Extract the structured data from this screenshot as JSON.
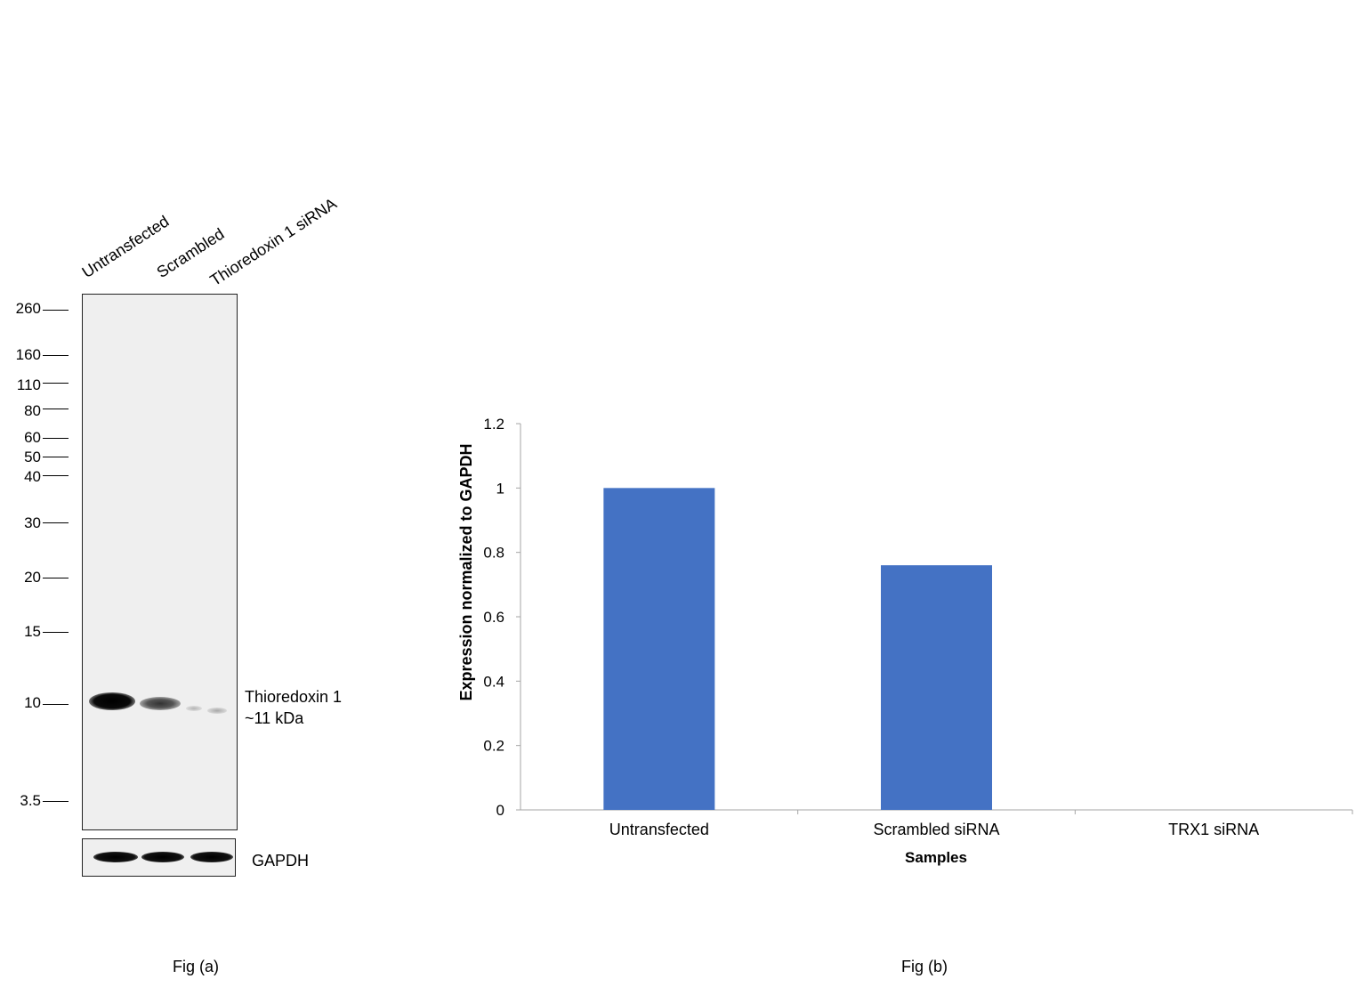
{
  "fig_a": {
    "lanes": [
      "Untransfected",
      "Scrambled",
      "Thioredoxin 1 siRNA"
    ],
    "markers": [
      "260",
      "160",
      "110",
      "80",
      "60",
      "50",
      "40",
      "30",
      "20",
      "15",
      "10",
      "3.5"
    ],
    "target_label": "Thioredoxin 1",
    "target_size": "~11 kDa",
    "loading_control": "GAPDH",
    "caption": "Fig (a)"
  },
  "fig_b": {
    "caption": "Fig (b)"
  },
  "chart_data": {
    "type": "bar",
    "categories": [
      "Untransfected",
      "Scrambled siRNA",
      "TRX1 siRNA"
    ],
    "values": [
      1.0,
      0.76,
      0.0
    ],
    "ylabel": "Expression  normalized to GAPDH",
    "xlabel": "Samples",
    "ylim": [
      0,
      1.2
    ],
    "yticks": [
      "0",
      "0.2",
      "0.4",
      "0.6",
      "0.8",
      "1",
      "1.2"
    ],
    "grid": false,
    "bar_color": "#4472c4"
  }
}
